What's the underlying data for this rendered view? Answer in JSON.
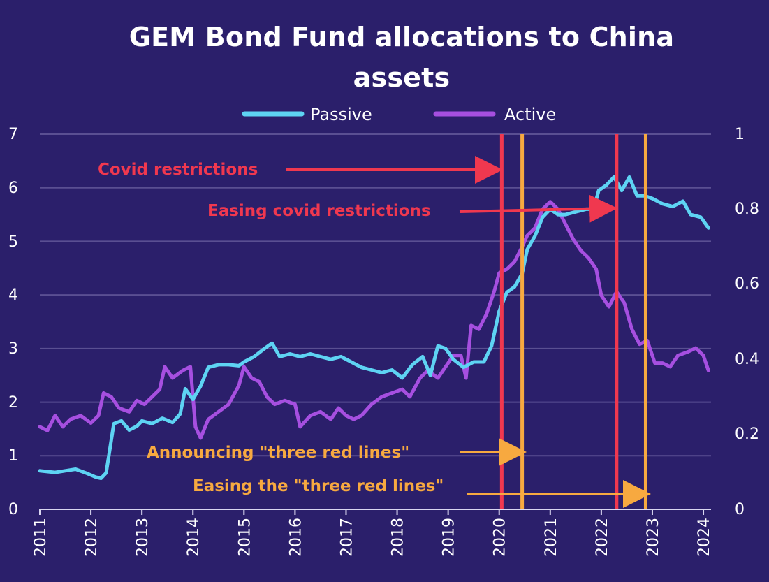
{
  "chart_data": {
    "type": "line",
    "title": "GEM Bond Fund allocations to China assets",
    "xlabel": "",
    "ylabel": "",
    "x_ticks": [
      "2011",
      "2012",
      "2013",
      "2014",
      "2015",
      "2016",
      "2017",
      "2018",
      "2019",
      "2020",
      "2021",
      "2022",
      "2023",
      "2024"
    ],
    "xlim": [
      2011.0,
      2024.15
    ],
    "y_left": {
      "range": [
        0,
        7
      ],
      "ticks": [
        "0",
        "1",
        "2",
        "3",
        "4",
        "5",
        "6",
        "7"
      ]
    },
    "y_right": {
      "range": [
        0,
        1
      ],
      "ticks": [
        "0",
        "0.2",
        "0.4",
        "0.6",
        "0.8",
        "1"
      ]
    },
    "grid": true,
    "legend": "top-center",
    "series": [
      {
        "name": "Passive",
        "axis": "left",
        "color": "#5ed3f3",
        "points": [
          [
            2011.0,
            0.72
          ],
          [
            2011.3,
            0.69
          ],
          [
            2011.5,
            0.72
          ],
          [
            2011.7,
            0.75
          ],
          [
            2011.9,
            0.68
          ],
          [
            2012.1,
            0.6
          ],
          [
            2012.2,
            0.58
          ],
          [
            2012.3,
            0.68
          ],
          [
            2012.45,
            1.6
          ],
          [
            2012.6,
            1.65
          ],
          [
            2012.75,
            1.48
          ],
          [
            2012.9,
            1.55
          ],
          [
            2013.0,
            1.65
          ],
          [
            2013.2,
            1.6
          ],
          [
            2013.4,
            1.7
          ],
          [
            2013.6,
            1.62
          ],
          [
            2013.75,
            1.78
          ],
          [
            2013.85,
            2.25
          ],
          [
            2014.0,
            2.05
          ],
          [
            2014.15,
            2.3
          ],
          [
            2014.3,
            2.65
          ],
          [
            2014.5,
            2.7
          ],
          [
            2014.7,
            2.7
          ],
          [
            2014.9,
            2.68
          ],
          [
            2015.0,
            2.75
          ],
          [
            2015.2,
            2.85
          ],
          [
            2015.4,
            3.0
          ],
          [
            2015.55,
            3.1
          ],
          [
            2015.7,
            2.85
          ],
          [
            2015.9,
            2.9
          ],
          [
            2016.1,
            2.85
          ],
          [
            2016.3,
            2.9
          ],
          [
            2016.5,
            2.85
          ],
          [
            2016.7,
            2.8
          ],
          [
            2016.9,
            2.85
          ],
          [
            2017.1,
            2.75
          ],
          [
            2017.3,
            2.65
          ],
          [
            2017.5,
            2.6
          ],
          [
            2017.7,
            2.55
          ],
          [
            2017.9,
            2.6
          ],
          [
            2018.1,
            2.45
          ],
          [
            2018.3,
            2.7
          ],
          [
            2018.5,
            2.85
          ],
          [
            2018.65,
            2.5
          ],
          [
            2018.8,
            3.05
          ],
          [
            2018.95,
            3.0
          ],
          [
            2019.1,
            2.8
          ],
          [
            2019.3,
            2.65
          ],
          [
            2019.5,
            2.75
          ],
          [
            2019.7,
            2.75
          ],
          [
            2019.85,
            3.05
          ],
          [
            2020.0,
            3.7
          ],
          [
            2020.15,
            4.05
          ],
          [
            2020.3,
            4.15
          ],
          [
            2020.45,
            4.4
          ],
          [
            2020.55,
            4.85
          ],
          [
            2020.7,
            5.1
          ],
          [
            2020.85,
            5.45
          ],
          [
            2021.0,
            5.6
          ],
          [
            2021.15,
            5.5
          ],
          [
            2021.3,
            5.5
          ],
          [
            2021.5,
            5.55
          ],
          [
            2021.7,
            5.6
          ],
          [
            2021.85,
            5.6
          ],
          [
            2021.95,
            5.95
          ],
          [
            2022.1,
            6.05
          ],
          [
            2022.25,
            6.2
          ],
          [
            2022.4,
            5.95
          ],
          [
            2022.55,
            6.2
          ],
          [
            2022.7,
            5.85
          ],
          [
            2022.85,
            5.85
          ],
          [
            2023.0,
            5.8
          ],
          [
            2023.2,
            5.7
          ],
          [
            2023.4,
            5.65
          ],
          [
            2023.6,
            5.75
          ],
          [
            2023.75,
            5.5
          ],
          [
            2023.95,
            5.45
          ],
          [
            2024.1,
            5.25
          ]
        ]
      },
      {
        "name": "Active",
        "axis": "right",
        "color": "#a64fe0",
        "points": [
          [
            2011.0,
            0.22
          ],
          [
            2011.15,
            0.21
          ],
          [
            2011.3,
            0.25
          ],
          [
            2011.45,
            0.22
          ],
          [
            2011.6,
            0.24
          ],
          [
            2011.8,
            0.25
          ],
          [
            2012.0,
            0.23
          ],
          [
            2012.15,
            0.25
          ],
          [
            2012.25,
            0.31
          ],
          [
            2012.4,
            0.3
          ],
          [
            2012.55,
            0.27
          ],
          [
            2012.75,
            0.26
          ],
          [
            2012.9,
            0.29
          ],
          [
            2013.05,
            0.28
          ],
          [
            2013.2,
            0.3
          ],
          [
            2013.35,
            0.32
          ],
          [
            2013.45,
            0.38
          ],
          [
            2013.6,
            0.35
          ],
          [
            2013.8,
            0.37
          ],
          [
            2013.95,
            0.38
          ],
          [
            2014.05,
            0.22
          ],
          [
            2014.15,
            0.19
          ],
          [
            2014.3,
            0.24
          ],
          [
            2014.5,
            0.26
          ],
          [
            2014.7,
            0.28
          ],
          [
            2014.9,
            0.33
          ],
          [
            2015.0,
            0.38
          ],
          [
            2015.15,
            0.35
          ],
          [
            2015.3,
            0.34
          ],
          [
            2015.45,
            0.3
          ],
          [
            2015.6,
            0.28
          ],
          [
            2015.8,
            0.29
          ],
          [
            2016.0,
            0.28
          ],
          [
            2016.1,
            0.22
          ],
          [
            2016.3,
            0.25
          ],
          [
            2016.5,
            0.26
          ],
          [
            2016.7,
            0.24
          ],
          [
            2016.85,
            0.27
          ],
          [
            2017.0,
            0.25
          ],
          [
            2017.15,
            0.24
          ],
          [
            2017.3,
            0.25
          ],
          [
            2017.5,
            0.28
          ],
          [
            2017.7,
            0.3
          ],
          [
            2017.9,
            0.31
          ],
          [
            2018.1,
            0.32
          ],
          [
            2018.25,
            0.3
          ],
          [
            2018.45,
            0.35
          ],
          [
            2018.6,
            0.37
          ],
          [
            2018.8,
            0.35
          ],
          [
            2018.95,
            0.38
          ],
          [
            2019.1,
            0.41
          ],
          [
            2019.25,
            0.41
          ],
          [
            2019.35,
            0.35
          ],
          [
            2019.45,
            0.49
          ],
          [
            2019.6,
            0.48
          ],
          [
            2019.75,
            0.52
          ],
          [
            2019.9,
            0.58
          ],
          [
            2020.0,
            0.63
          ],
          [
            2020.15,
            0.64
          ],
          [
            2020.3,
            0.66
          ],
          [
            2020.45,
            0.7
          ],
          [
            2020.55,
            0.73
          ],
          [
            2020.7,
            0.75
          ],
          [
            2020.85,
            0.8
          ],
          [
            2021.0,
            0.82
          ],
          [
            2021.15,
            0.8
          ],
          [
            2021.3,
            0.76
          ],
          [
            2021.45,
            0.72
          ],
          [
            2021.6,
            0.69
          ],
          [
            2021.75,
            0.67
          ],
          [
            2021.9,
            0.64
          ],
          [
            2022.0,
            0.57
          ],
          [
            2022.15,
            0.54
          ],
          [
            2022.3,
            0.58
          ],
          [
            2022.45,
            0.55
          ],
          [
            2022.6,
            0.48
          ],
          [
            2022.75,
            0.44
          ],
          [
            2022.9,
            0.45
          ],
          [
            2023.05,
            0.39
          ],
          [
            2023.2,
            0.39
          ],
          [
            2023.35,
            0.38
          ],
          [
            2023.5,
            0.41
          ],
          [
            2023.7,
            0.42
          ],
          [
            2023.85,
            0.43
          ],
          [
            2024.0,
            0.41
          ],
          [
            2024.1,
            0.37
          ]
        ]
      }
    ],
    "event_lines": [
      {
        "x": 2020.05,
        "color": "#f0384f"
      },
      {
        "x": 2020.45,
        "color": "#f7a940"
      },
      {
        "x": 2022.3,
        "color": "#f0384f"
      },
      {
        "x": 2022.87,
        "color": "#f7a940"
      }
    ],
    "annotations": [
      {
        "text": "Covid restrictions",
        "color": "#f0384f"
      },
      {
        "text": "Easing covid restrictions",
        "color": "#f0384f"
      },
      {
        "text": "Announcing \"three red lines\"",
        "color": "#f7a940"
      },
      {
        "text": "Easing the \"three red lines\"",
        "color": "#f7a940"
      }
    ],
    "colors": {
      "background": "#2b1f6b",
      "text": "#ffffff",
      "grid": "#5a4f92",
      "axis": "#d9d6f0"
    }
  }
}
